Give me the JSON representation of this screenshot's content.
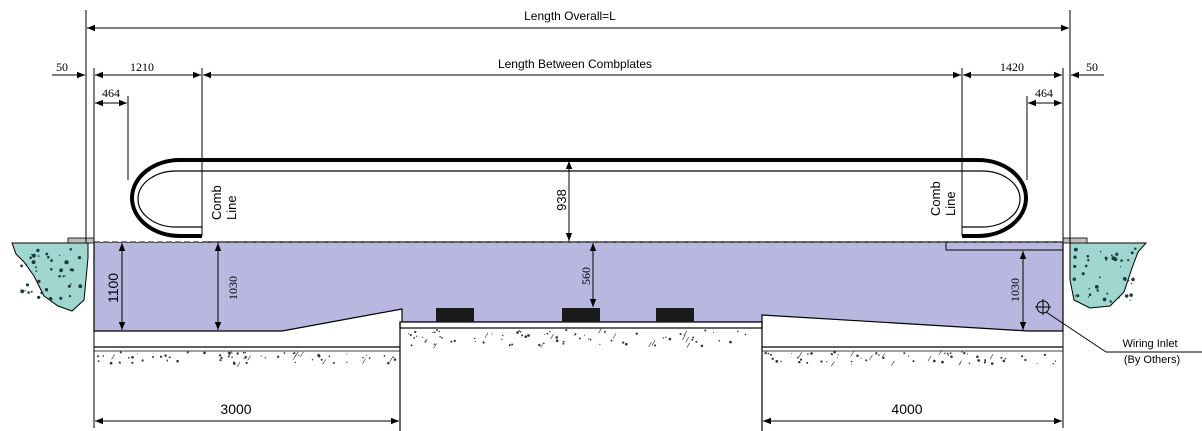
{
  "diagram": {
    "length_overall": "Length Overall=L",
    "length_between": "Length Between Combplates",
    "dim_50_left": "50",
    "dim_50_right": "50",
    "dim_1210": "1210",
    "dim_1420": "1420",
    "dim_464_left": "464",
    "dim_464_right": "464",
    "comb_left": "Comb",
    "line_left": "Line",
    "comb_right": "Comb",
    "line_right": "Line",
    "dim_938": "938",
    "dim_560": "560",
    "dim_1100": "1100",
    "dim_1030_left": "1030",
    "dim_1030_right": "1030",
    "dim_3000": "3000",
    "dim_4000": "4000",
    "wiring_1": "Wiring Inlet",
    "wiring_2": "(By Others)"
  },
  "colors": {
    "pit_fill": "#b7b7e0",
    "soil_fill": "#9fd6cf",
    "line": "#000000"
  }
}
